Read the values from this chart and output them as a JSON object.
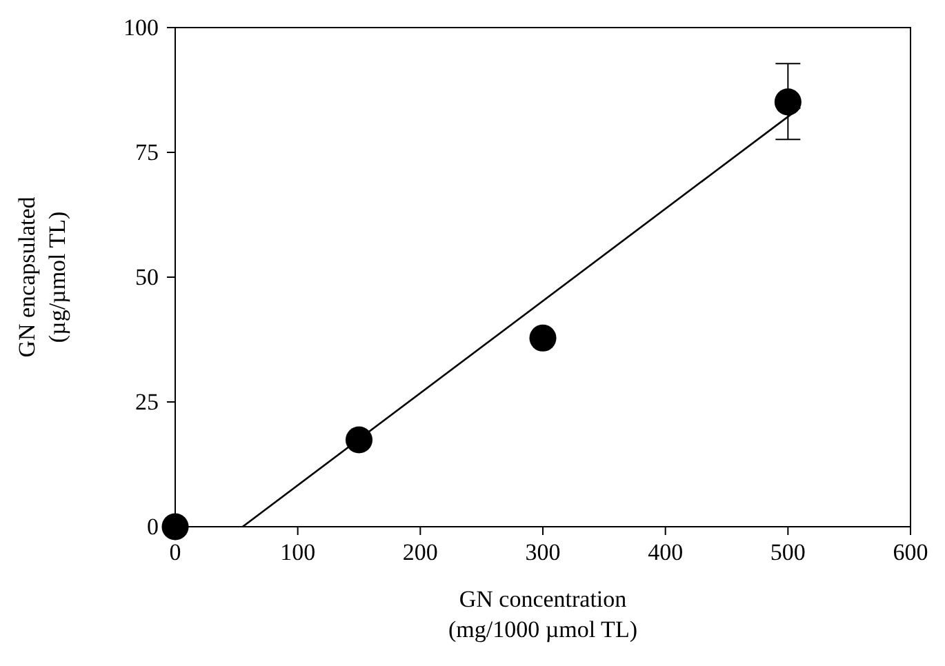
{
  "chart_data": {
    "type": "scatter",
    "xlabel": "GN concentration\n(mg/1000 µmol TL)",
    "ylabel": "GN encapsulated\n(µg/µmol TL)",
    "xlim": [
      0,
      600
    ],
    "ylim": [
      0,
      100
    ],
    "xticks": [
      0,
      100,
      200,
      300,
      400,
      500,
      600
    ],
    "yticks": [
      0,
      25,
      50,
      75,
      100
    ],
    "grid": false,
    "series": [
      {
        "marker": "circle",
        "color": "#000000",
        "x": [
          0,
          150,
          300,
          500
        ],
        "values": [
          0,
          17.4,
          37.8,
          85.1
        ],
        "errors": [
          null,
          null,
          null,
          [
            77.6,
            92.8
          ]
        ]
      },
      {
        "type": "line",
        "color": "#000000",
        "x": [
          55,
          510
        ],
        "values": [
          0,
          84
        ]
      }
    ]
  }
}
